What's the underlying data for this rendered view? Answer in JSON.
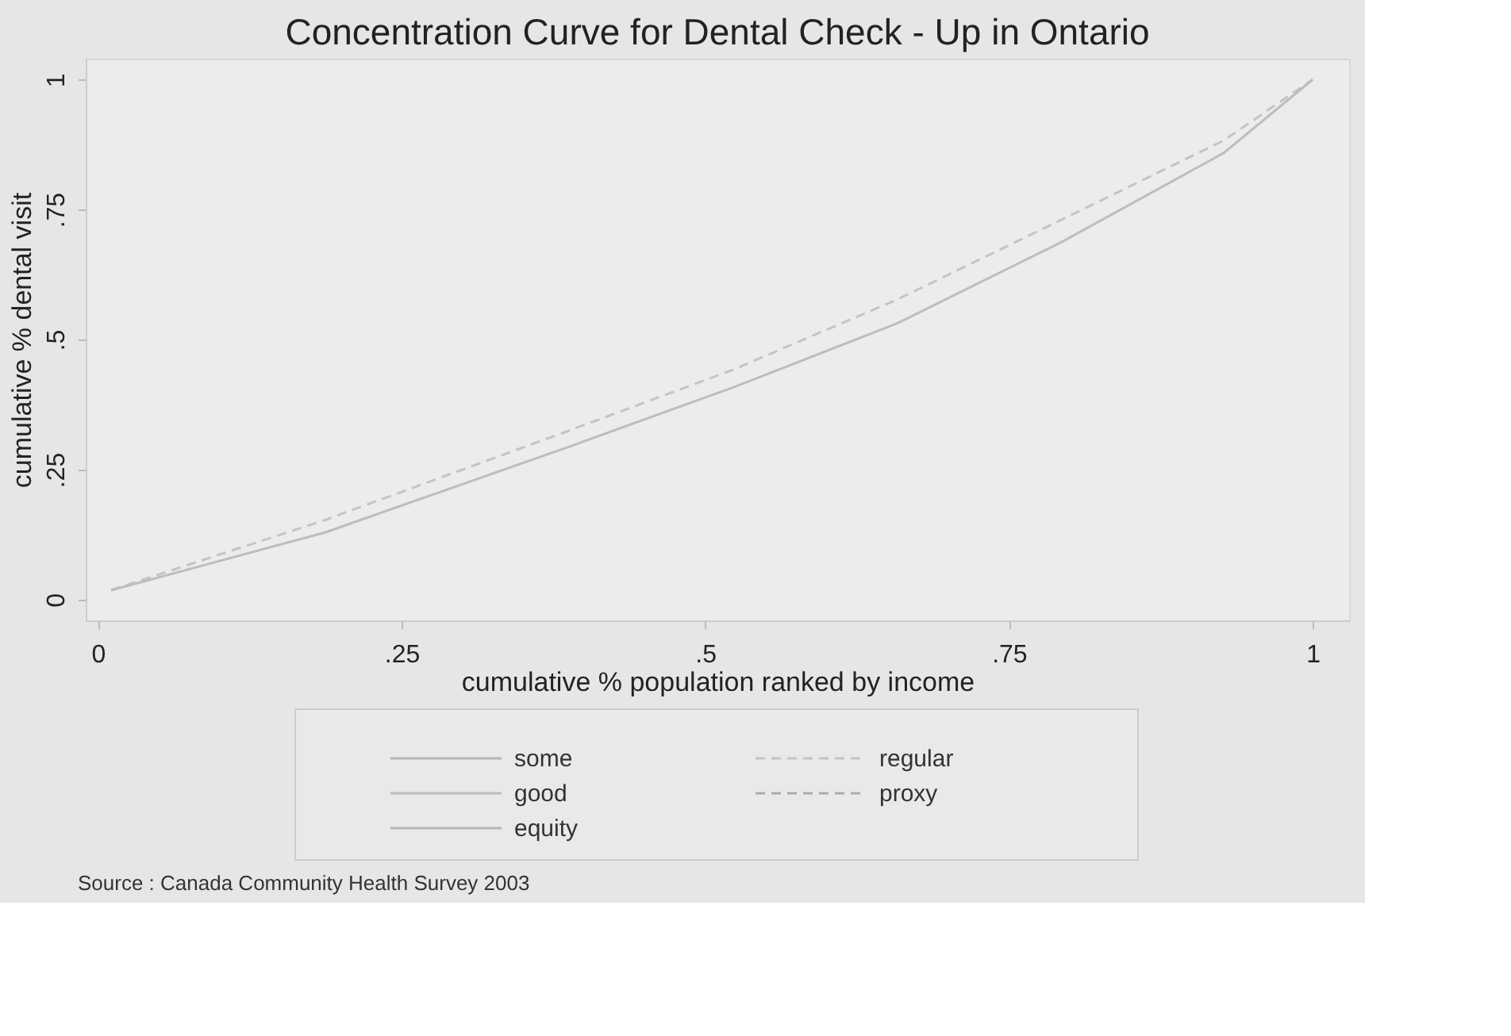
{
  "chart_data": {
    "type": "line",
    "title": "Concentration Curve for Dental Check - Up in Ontario",
    "xlabel": "cumulative % population ranked by income",
    "ylabel": "cumulative % dental visit",
    "x": [
      0.011,
      0.187,
      0.388,
      0.523,
      0.658,
      0.793,
      0.927,
      1.0
    ],
    "series": [
      {
        "name": "some",
        "color": "#b4b4b4",
        "line_style": "solid",
        "values": [
          null,
          null,
          null,
          null,
          null,
          null,
          null,
          null
        ]
      },
      {
        "name": "regular",
        "color": "#c4c4c4",
        "line_style": "dashed",
        "values": [
          0.018,
          0.153,
          0.325,
          0.442,
          0.577,
          0.73,
          0.883,
          1.0
        ]
      },
      {
        "name": "good",
        "color": "#bdbdbd",
        "line_style": "solid",
        "values": [
          0.018,
          0.129,
          0.294,
          0.408,
          0.531,
          0.687,
          0.859,
          1.0
        ]
      },
      {
        "name": "proxy",
        "color": "#acacac",
        "line_style": "dashed",
        "values": [
          null,
          null,
          null,
          null,
          null,
          null,
          null,
          null
        ]
      },
      {
        "name": "equity",
        "color": "#b8b8b8",
        "line_style": "solid",
        "values": [
          null,
          null,
          null,
          null,
          null,
          null,
          null,
          null
        ]
      }
    ],
    "xlim": [
      -0.01,
      1.03
    ],
    "ylim": [
      -0.04,
      1.04
    ],
    "xticks": [
      0,
      {
        "value": 0.25,
        "label": ".25"
      },
      {
        "value": 0.5,
        "label": ".5"
      },
      {
        "value": 0.75,
        "label": ".75"
      },
      1
    ],
    "yticks": [
      0,
      {
        "value": 0.25,
        "label": ".25"
      },
      {
        "value": 0.5,
        "label": ".5"
      },
      {
        "value": 0.75,
        "label": ".75"
      },
      1
    ],
    "legend": "bottom",
    "grid": false,
    "annotations": [
      "Source : Canada Community Health Survey 2003"
    ]
  }
}
